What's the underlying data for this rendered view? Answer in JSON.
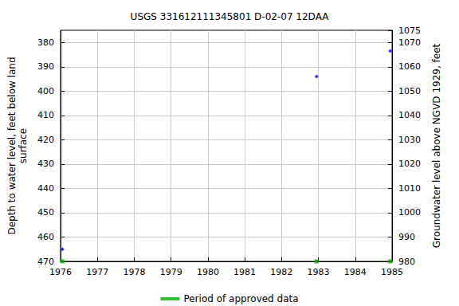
{
  "chart_data": {
    "type": "scatter",
    "title": "USGS 331612111345801 D-02-07 12DAA",
    "x_label": "",
    "y_label": "Depth to water level, feet below land\nsurface",
    "y2_label": "Groundwater level above NGVD 1929, feet",
    "xlim": [
      1976,
      1985
    ],
    "xticks": [
      1976,
      1977,
      1978,
      1979,
      1980,
      1981,
      1982,
      1983,
      1984,
      1985
    ],
    "ylim": [
      470,
      375
    ],
    "yticks": [
      380,
      390,
      400,
      410,
      420,
      430,
      440,
      450,
      460,
      470
    ],
    "y2lim": [
      980,
      1075
    ],
    "y2ticks": [
      980,
      990,
      1000,
      1010,
      1020,
      1030,
      1040,
      1050,
      1060,
      1070
    ],
    "grid": true,
    "legend": "bottom",
    "series": [
      {
        "color": "#0000ff",
        "marker": "diamond",
        "x": [
          1976.05,
          1982.95,
          1984.95
        ],
        "values": [
          465,
          394,
          383.5
        ]
      },
      {
        "name": "Period of approved data",
        "color": "#00aa00",
        "marker": "square",
        "x": [
          1976.05,
          1982.95,
          1984.95
        ],
        "values": [
          470,
          470,
          470
        ]
      }
    ]
  }
}
